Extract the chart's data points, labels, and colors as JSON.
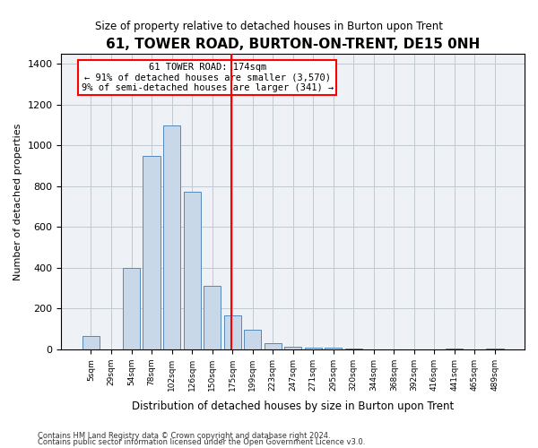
{
  "title": "61, TOWER ROAD, BURTON-ON-TRENT, DE15 0NH",
  "subtitle": "Size of property relative to detached houses in Burton upon Trent",
  "xlabel": "Distribution of detached houses by size in Burton upon Trent",
  "ylabel": "Number of detached properties",
  "footnote1": "Contains HM Land Registry data © Crown copyright and database right 2024.",
  "footnote2": "Contains public sector information licensed under the Open Government Licence v3.0.",
  "bar_labels": [
    "5sqm",
    "29sqm",
    "54sqm",
    "78sqm",
    "102sqm",
    "126sqm",
    "150sqm",
    "175sqm",
    "199sqm",
    "223sqm",
    "247sqm",
    "271sqm",
    "295sqm",
    "320sqm",
    "344sqm",
    "368sqm",
    "392sqm",
    "416sqm",
    "441sqm",
    "465sqm",
    "489sqm"
  ],
  "bar_values": [
    65,
    0,
    400,
    950,
    1100,
    775,
    310,
    165,
    95,
    30,
    15,
    10,
    10,
    5,
    0,
    0,
    0,
    0,
    5,
    0,
    5
  ],
  "bar_color": "#c8d8e8",
  "bar_edge_color": "#5588bb",
  "ylim": [
    0,
    1450
  ],
  "yticks": [
    0,
    200,
    400,
    600,
    800,
    1000,
    1200,
    1400
  ],
  "property_line_label": "61 TOWER ROAD: 174sqm",
  "annotation_line1": "← 91% of detached houses are smaller (3,570)",
  "annotation_line2": "9% of semi-detached houses are larger (341) →",
  "grid_color": "#c0c8d0",
  "background_color": "#eef2f7"
}
